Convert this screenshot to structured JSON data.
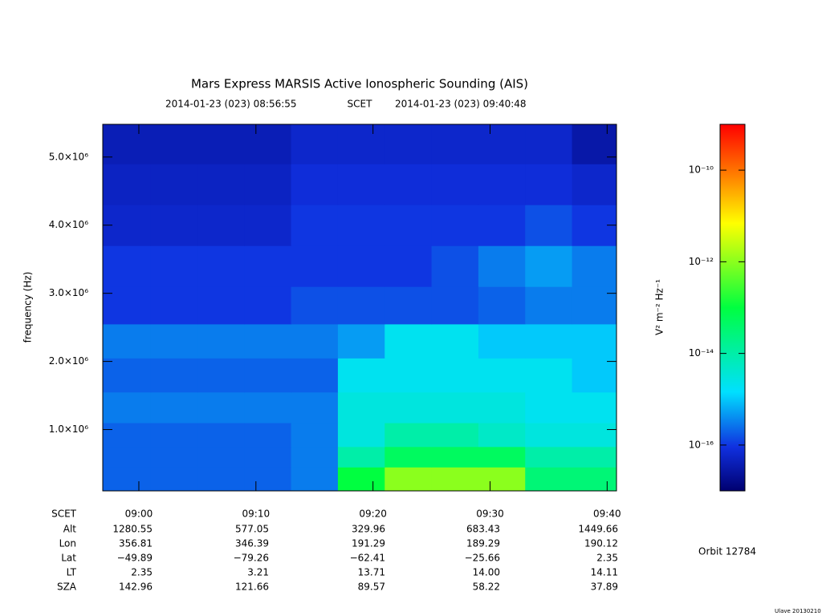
{
  "chart_data": {
    "type": "spectrogram",
    "title": "Mars Express MARSIS Active Ionospheric Sounding (AIS)",
    "start_label": "2014-01-23 (023) 08:56:55",
    "time_system": "SCET",
    "end_label": "2014-01-23 (023) 09:40:48",
    "y_label": "frequency (Hz)",
    "colorbar_label": "V² m⁻² Hz⁻¹",
    "orbit": "Orbit 12784",
    "credit": "Ulave 20130210",
    "xlim": [
      "08:56:55",
      "09:40:48"
    ],
    "xticks": [
      "09:00",
      "09:10",
      "09:20",
      "09:30",
      "09:40"
    ],
    "ylim": [
      100000,
      5480000
    ],
    "yticks": [
      {
        "value": 1000000,
        "label": "1.0×10⁶"
      },
      {
        "value": 2000000,
        "label": "2.0×10⁶"
      },
      {
        "value": 3000000,
        "label": "3.0×10⁶"
      },
      {
        "value": 4000000,
        "label": "4.0×10⁶"
      },
      {
        "value": 5000000,
        "label": "5.0×10⁶"
      }
    ],
    "zlim": [
      1e-17,
      1e-09
    ],
    "zscale": "log",
    "zticks": [
      {
        "value": 1e-16,
        "label": "10⁻¹⁶"
      },
      {
        "value": 1e-14,
        "label": "10⁻¹⁴"
      },
      {
        "value": 1e-12,
        "label": "10⁻¹²"
      },
      {
        "value": 1e-10,
        "label": "10⁻¹⁰"
      }
    ],
    "colormap": [
      {
        "offset": 0,
        "color": "#000070"
      },
      {
        "offset": 0.12,
        "color": "#1030e0"
      },
      {
        "offset": 0.27,
        "color": "#00e0ff"
      },
      {
        "offset": 0.5,
        "color": "#00ff40"
      },
      {
        "offset": 0.73,
        "color": "#ffff00"
      },
      {
        "offset": 0.86,
        "color": "#ff8000"
      },
      {
        "offset": 1,
        "color": "#ff0000"
      }
    ],
    "x": [
      "08:59",
      "09:03",
      "09:07",
      "09:11",
      "09:15",
      "09:19",
      "09:23",
      "09:27",
      "09:31",
      "09:35",
      "09:39"
    ],
    "y": [
      300000,
      600000,
      900000,
      1300000,
      1800000,
      2300000,
      2800000,
      3400000,
      4000000,
      4600000,
      5200000
    ],
    "z": [
      [
        2e-16,
        2e-16,
        2e-16,
        2e-16,
        3e-16,
        1e-13,
        1e-12,
        1e-12,
        1e-12,
        3e-14,
        3e-14
      ],
      [
        2e-16,
        2e-16,
        2e-16,
        2e-16,
        3e-16,
        1e-14,
        5e-14,
        5e-14,
        5e-14,
        1e-14,
        1e-14
      ],
      [
        2e-16,
        2e-16,
        2e-16,
        2e-16,
        3e-16,
        3e-15,
        1e-14,
        1e-14,
        5e-15,
        3e-15,
        3e-15
      ],
      [
        3e-16,
        3e-16,
        3e-16,
        3e-16,
        3e-16,
        3e-15,
        3e-15,
        3e-15,
        3e-15,
        2e-15,
        2e-15
      ],
      [
        2e-16,
        2e-16,
        2e-16,
        2e-16,
        2e-16,
        2e-15,
        2e-15,
        2e-15,
        2e-15,
        2e-15,
        1e-15
      ],
      [
        3e-16,
        3e-16,
        3e-16,
        3e-16,
        3e-16,
        5e-16,
        2e-15,
        2e-15,
        1e-15,
        1e-15,
        1e-15
      ],
      [
        1e-16,
        1e-16,
        1e-16,
        1e-16,
        1.5e-16,
        1.5e-16,
        1.5e-16,
        1.5e-16,
        2e-16,
        3e-16,
        3e-16
      ],
      [
        1e-16,
        1e-16,
        1e-16,
        1e-16,
        1e-16,
        1e-16,
        1e-16,
        1.5e-16,
        3e-16,
        5e-16,
        3e-16
      ],
      [
        6e-17,
        6e-17,
        6e-17,
        6e-17,
        1e-16,
        1e-16,
        1e-16,
        1e-16,
        1e-16,
        1.5e-16,
        1e-16
      ],
      [
        5e-17,
        5e-17,
        5e-17,
        5e-17,
        8e-17,
        8e-17,
        8e-17,
        8e-17,
        8e-17,
        8e-17,
        6e-17
      ],
      [
        4e-17,
        4e-17,
        4e-17,
        4e-17,
        6e-17,
        6e-17,
        6e-17,
        6e-17,
        6e-17,
        6e-17,
        3e-17
      ]
    ],
    "ephemeris": {
      "row_label": "SCET",
      "rows": [
        {
          "label": "Alt",
          "values": [
            "1280.55",
            "577.05",
            "329.96",
            "683.43",
            "1449.66"
          ]
        },
        {
          "label": "Lon",
          "values": [
            "356.81",
            "346.39",
            "191.29",
            "189.29",
            "190.12"
          ]
        },
        {
          "label": "Lat",
          "values": [
            "−49.89",
            "−79.26",
            "−62.41",
            "−25.66",
            "2.35"
          ]
        },
        {
          "label": "LT",
          "values": [
            "2.35",
            "3.21",
            "13.71",
            "14.00",
            "14.11"
          ]
        },
        {
          "label": "SZA",
          "values": [
            "142.96",
            "121.66",
            "89.57",
            "58.22",
            "37.89"
          ]
        }
      ]
    }
  }
}
